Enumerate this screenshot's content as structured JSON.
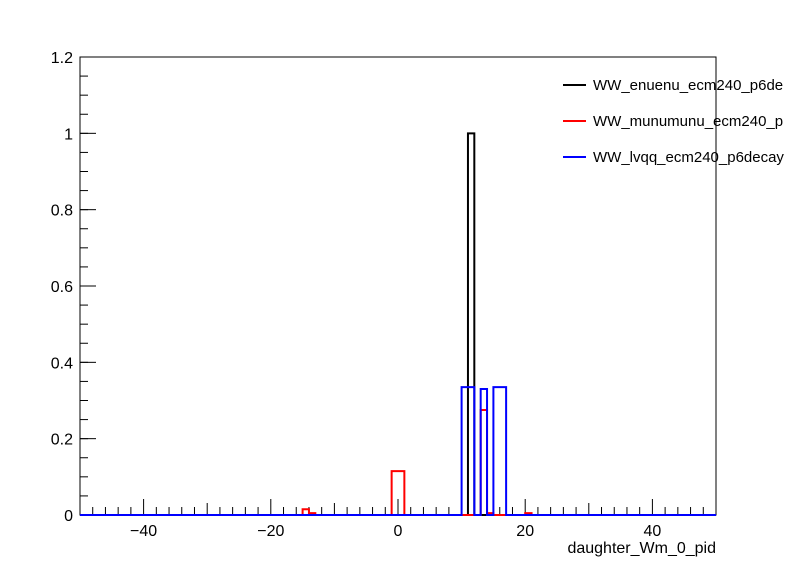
{
  "chart_data": {
    "type": "line",
    "style": "step-histogram",
    "title": "",
    "xlabel": "daughter_Wm_0_pid",
    "ylabel": "",
    "xlim": [
      -50,
      50
    ],
    "ylim": [
      0,
      1.2
    ],
    "x_ticks": [
      -40,
      -20,
      0,
      20,
      40
    ],
    "x_tick_labels": [
      "−40",
      "−20",
      "0",
      "20",
      "40"
    ],
    "y_ticks": [
      0,
      0.2,
      0.4,
      0.6,
      0.8,
      1,
      1.2
    ],
    "y_tick_labels": [
      "0",
      "0.2",
      "0.4",
      "0.6",
      "0.8",
      "1",
      "1.2"
    ],
    "grid": false,
    "legend_position": "top-right",
    "series": [
      {
        "name": "WW_enuenu_ecm240_p6de",
        "color": "#000000",
        "bins": [
          {
            "x0": 11,
            "x1": 12,
            "y": 1.0
          }
        ]
      },
      {
        "name": "WW_munumunu_ecm240_p",
        "color": "#ff0000",
        "bins": [
          {
            "x0": -15,
            "x1": -14,
            "y": 0.015
          },
          {
            "x0": -14,
            "x1": -13,
            "y": 0.005
          },
          {
            "x0": -1,
            "x1": 0,
            "y": 0.115
          },
          {
            "x0": 0,
            "x1": 1,
            "y": 0.115
          },
          {
            "x0": 13,
            "x1": 14,
            "y": 0.275
          },
          {
            "x0": 14,
            "x1": 15,
            "y": 0.005
          },
          {
            "x0": 20,
            "x1": 21,
            "y": 0.005
          }
        ]
      },
      {
        "name": "WW_lvqq_ecm240_p6decay",
        "color": "#0000ff",
        "bins": [
          {
            "x0": 10,
            "x1": 11,
            "y": 0.335
          },
          {
            "x0": 11,
            "x1": 12,
            "y": 0.335
          },
          {
            "x0": 13,
            "x1": 14,
            "y": 0.33
          },
          {
            "x0": 15,
            "x1": 16,
            "y": 0.335
          },
          {
            "x0": 16,
            "x1": 17,
            "y": 0.335
          }
        ]
      }
    ]
  }
}
